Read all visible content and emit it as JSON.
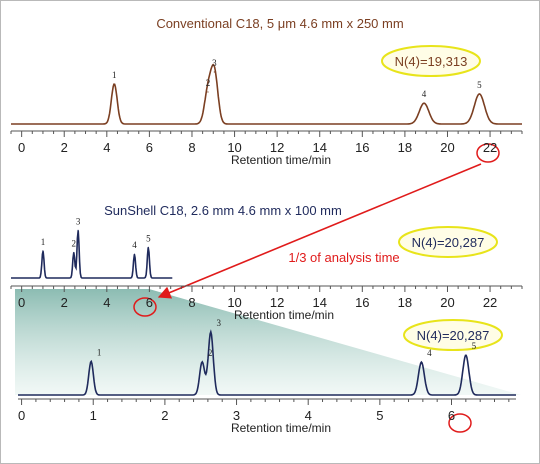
{
  "title_top": "Conventional C18, 5 μm 4.6 mm x 250 mm",
  "title_mid": "SunShell C18, 2.6 mm 4.6 mm x 100 mm",
  "n_top": "N(4)=19,313",
  "n_mid": "N(4)=20,287",
  "n_bot": "N(4)=20,287",
  "annotation": "1/3 of analysis time",
  "highlight_top": "22",
  "highlight_mid": "6",
  "highlight_bot": "6",
  "colors": {
    "brown": "#7b3f22",
    "navy": "#1f2a5c",
    "red": "#e01b1b",
    "oval": "#e8e41a",
    "teal": "#4f9a8a"
  },
  "chart_data": [
    {
      "type": "line",
      "title": "Conventional C18, 5 μm 4.6 mm x 250 mm",
      "xlabel": "Retention time/min",
      "xlim": [
        -0.5,
        23.5
      ],
      "xticks": [
        0,
        2,
        4,
        6,
        8,
        10,
        12,
        14,
        16,
        18,
        20,
        22
      ],
      "peaks": [
        {
          "label": "1",
          "rt": 4.35,
          "height": 1.0
        },
        {
          "label": "2",
          "rt": 8.75,
          "height": 0.8
        },
        {
          "label": "3",
          "rt": 9.05,
          "height": 1.3
        },
        {
          "label": "4",
          "rt": 18.9,
          "height": 0.52
        },
        {
          "label": "5",
          "rt": 21.5,
          "height": 0.75
        }
      ],
      "annotation": "N(4)=19,313"
    },
    {
      "type": "line",
      "title": "SunShell C18, 2.6 mm 4.6 mm x 100 mm",
      "xlabel": "Retention time/min",
      "xlim": [
        -0.5,
        23.5
      ],
      "xticks": [
        0,
        2,
        4,
        6,
        8,
        10,
        12,
        14,
        16,
        18,
        20,
        22
      ],
      "peaks": [
        {
          "label": "1",
          "rt": 1.0,
          "height": 0.8
        },
        {
          "label": "2",
          "rt": 2.45,
          "height": 0.75
        },
        {
          "label": "3",
          "rt": 2.65,
          "height": 1.4
        },
        {
          "label": "4",
          "rt": 5.3,
          "height": 0.7
        },
        {
          "label": "5",
          "rt": 5.95,
          "height": 0.9
        }
      ],
      "annotation": "N(4)=20,287"
    },
    {
      "type": "line",
      "title": "",
      "xlabel": "Retention time/min",
      "xlim": [
        -0.05,
        6.9
      ],
      "xticks": [
        0,
        1,
        2,
        3,
        4,
        5,
        6
      ],
      "peaks": [
        {
          "label": "1",
          "rt": 0.97,
          "height": 0.48
        },
        {
          "label": "2",
          "rt": 2.52,
          "height": 0.47
        },
        {
          "label": "3",
          "rt": 2.64,
          "height": 0.9
        },
        {
          "label": "4",
          "rt": 5.58,
          "height": 0.47
        },
        {
          "label": "5",
          "rt": 6.2,
          "height": 0.57
        }
      ],
      "annotation": "N(4)=20,287"
    }
  ]
}
